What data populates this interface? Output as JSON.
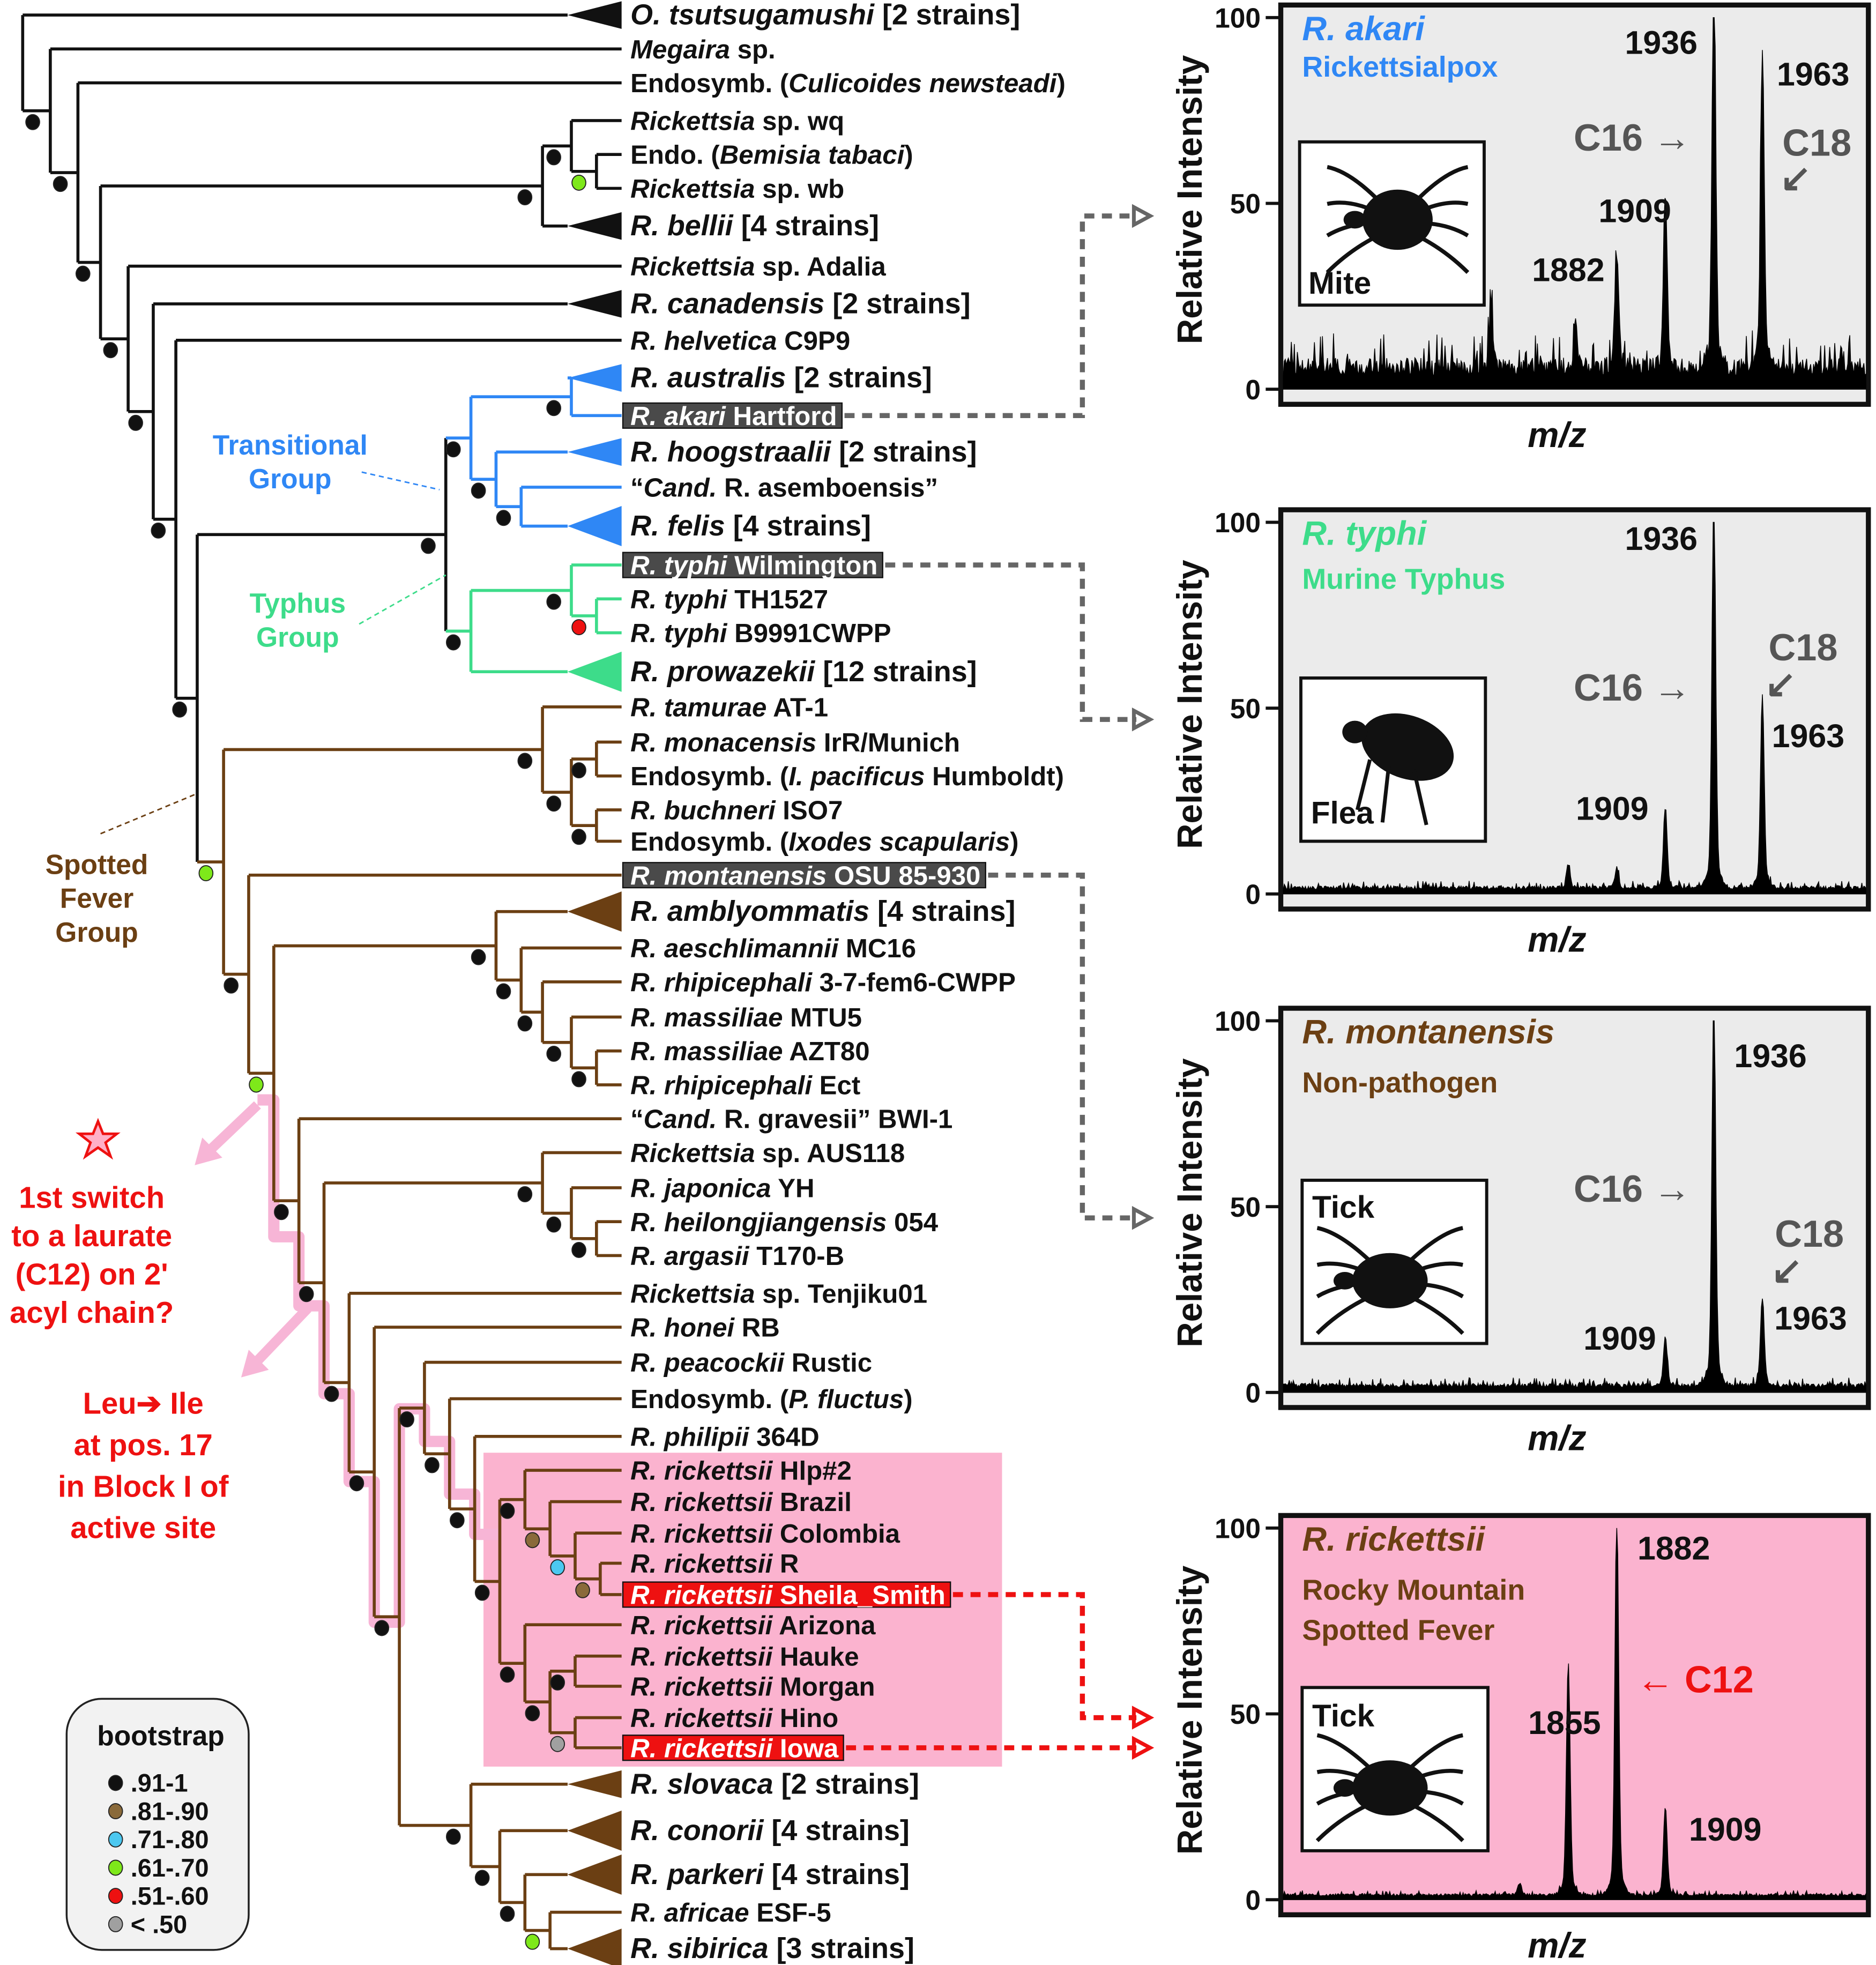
{
  "colors": {
    "basal": "#111111",
    "transitional": "#2f87f5",
    "typhus": "#3ddc8a",
    "spotted": "#6b3f13",
    "highlight_gray": "#4a4a4a",
    "highlight_red": "#ee1111",
    "pink_box": "#fbb3cf",
    "annotation_red": "#ee1111",
    "arrow_pink": "#f7b5d6",
    "panel_bg": "#ebebeb"
  },
  "tree": {
    "leaves": [
      {
        "p": [
          [
            "O. tsutsugamushi",
            1
          ],
          [
            "  [2 strains]",
            0
          ]
        ],
        "g": "k",
        "c": 1
      },
      {
        "p": [
          [
            "Megaira",
            1
          ],
          [
            " sp.",
            0
          ]
        ],
        "g": "k"
      },
      {
        "p": [
          [
            "Endosymb. (",
            0
          ],
          [
            "Culicoides newsteadi",
            1
          ],
          [
            ")",
            0
          ]
        ],
        "g": "k"
      },
      {
        "p": [
          [
            "Rickettsia",
            1
          ],
          [
            " sp. wq",
            0
          ]
        ],
        "g": "k"
      },
      {
        "p": [
          [
            "Endo. (",
            0
          ],
          [
            "Bemisia tabaci",
            1
          ],
          [
            ")",
            0
          ]
        ],
        "g": "k"
      },
      {
        "p": [
          [
            "Rickettsia",
            1
          ],
          [
            " sp. wb",
            0
          ]
        ],
        "g": "k"
      },
      {
        "p": [
          [
            "R. bellii",
            1
          ],
          [
            "  [4 strains]",
            0
          ]
        ],
        "g": "k",
        "c": 1
      },
      {
        "p": [
          [
            "Rickettsia",
            1
          ],
          [
            " sp. Adalia",
            0
          ]
        ],
        "g": "k"
      },
      {
        "p": [
          [
            "R. canadensis",
            1
          ],
          [
            "  [2 strains]",
            0
          ]
        ],
        "g": "k",
        "c": 1
      },
      {
        "p": [
          [
            "R. helvetica",
            1
          ],
          [
            "  C9P9",
            0
          ]
        ],
        "g": "k"
      },
      {
        "p": [
          [
            "R. australis",
            1
          ],
          [
            "  [2 strains]",
            0
          ]
        ],
        "g": "t",
        "c": 1
      },
      {
        "p": [
          [
            "R. akari",
            1
          ],
          [
            "  Hartford",
            0
          ]
        ],
        "g": "t",
        "hl": "gray"
      },
      {
        "p": [
          [
            "R. hoogstraalii",
            1
          ],
          [
            "  [2 strains]",
            0
          ]
        ],
        "g": "t",
        "c": 1
      },
      {
        "p": [
          [
            "“",
            0
          ],
          [
            "Cand.",
            1
          ],
          [
            " R. asemboensis”",
            0
          ]
        ],
        "g": "t"
      },
      {
        "p": [
          [
            "R. felis",
            1
          ],
          [
            "  [4 strains]",
            0
          ]
        ],
        "g": "t",
        "c": 2
      },
      {
        "p": [
          [
            "R. typhi",
            1
          ],
          [
            "  Wilmington",
            0
          ]
        ],
        "g": "y",
        "hl": "gray"
      },
      {
        "p": [
          [
            "R. typhi",
            1
          ],
          [
            "  TH1527",
            0
          ]
        ],
        "g": "y"
      },
      {
        "p": [
          [
            "R. typhi",
            1
          ],
          [
            "  B9991CWPP",
            0
          ]
        ],
        "g": "y"
      },
      {
        "p": [
          [
            "R. prowazekii",
            1
          ],
          [
            "  [12 strains]",
            0
          ]
        ],
        "g": "y",
        "c": 2
      },
      {
        "p": [
          [
            "R. tamurae",
            1
          ],
          [
            "  AT-1",
            0
          ]
        ],
        "g": "s"
      },
      {
        "p": [
          [
            "R. monacensis",
            1
          ],
          [
            "  IrR/Munich",
            0
          ]
        ],
        "g": "s"
      },
      {
        "p": [
          [
            "Endosymb. (",
            0
          ],
          [
            "I. pacificus",
            1
          ],
          [
            " Humboldt)",
            0
          ]
        ],
        "g": "s"
      },
      {
        "p": [
          [
            "R. buchneri",
            1
          ],
          [
            "  ISO7",
            0
          ]
        ],
        "g": "s"
      },
      {
        "p": [
          [
            "Endosymb. (",
            0
          ],
          [
            "Ixodes scapularis",
            1
          ],
          [
            ")",
            0
          ]
        ],
        "g": "s"
      },
      {
        "p": [
          [
            "R. montanensis",
            1
          ],
          [
            "  OSU 85-930",
            0
          ]
        ],
        "g": "s",
        "hl": "gray"
      },
      {
        "p": [
          [
            "R. amblyommatis",
            1
          ],
          [
            "  [4 strains]",
            0
          ]
        ],
        "g": "s",
        "c": 2
      },
      {
        "p": [
          [
            "R. aeschlimannii",
            1
          ],
          [
            "  MC16",
            0
          ]
        ],
        "g": "s"
      },
      {
        "p": [
          [
            "R. rhipicephali",
            1
          ],
          [
            "  3-7-fem6-CWPP",
            0
          ]
        ],
        "g": "s"
      },
      {
        "p": [
          [
            "R. massiliae",
            1
          ],
          [
            "  MTU5",
            0
          ]
        ],
        "g": "s"
      },
      {
        "p": [
          [
            "R. massiliae",
            1
          ],
          [
            "  AZT80",
            0
          ]
        ],
        "g": "s"
      },
      {
        "p": [
          [
            "R. rhipicephali",
            1
          ],
          [
            "  Ect",
            0
          ]
        ],
        "g": "s"
      },
      {
        "p": [
          [
            "“",
            0
          ],
          [
            "Cand.",
            1
          ],
          [
            " R. gravesii”  BWI-1",
            0
          ]
        ],
        "g": "s"
      },
      {
        "p": [
          [
            "Rickettsia",
            1
          ],
          [
            " sp. AUS118",
            0
          ]
        ],
        "g": "s"
      },
      {
        "p": [
          [
            "R. japonica",
            1
          ],
          [
            "  YH",
            0
          ]
        ],
        "g": "s"
      },
      {
        "p": [
          [
            "R. heilongjiangensis",
            1
          ],
          [
            "  054",
            0
          ]
        ],
        "g": "s"
      },
      {
        "p": [
          [
            "R. argasii",
            1
          ],
          [
            "  T170-B",
            0
          ]
        ],
        "g": "s"
      },
      {
        "p": [
          [
            "Rickettsia",
            1
          ],
          [
            " sp. Tenjiku01",
            0
          ]
        ],
        "g": "s"
      },
      {
        "p": [
          [
            "R. honei",
            1
          ],
          [
            "  RB",
            0
          ]
        ],
        "g": "s"
      },
      {
        "p": [
          [
            "R. peacockii",
            1
          ],
          [
            "  Rustic",
            0
          ]
        ],
        "g": "s"
      },
      {
        "p": [
          [
            "Endosymb. (",
            0
          ],
          [
            "P. fluctus",
            1
          ],
          [
            ")",
            0
          ]
        ],
        "g": "s"
      },
      {
        "p": [
          [
            "R. philipii",
            1
          ],
          [
            "  364D",
            0
          ]
        ],
        "g": "s"
      },
      {
        "p": [
          [
            "R. rickettsii",
            1
          ],
          [
            "  Hlp#2",
            0
          ]
        ],
        "g": "s"
      },
      {
        "p": [
          [
            "R. rickettsii",
            1
          ],
          [
            "  Brazil",
            0
          ]
        ],
        "g": "s"
      },
      {
        "p": [
          [
            "R. rickettsii",
            1
          ],
          [
            "  Colombia",
            0
          ]
        ],
        "g": "s"
      },
      {
        "p": [
          [
            "R. rickettsii",
            1
          ],
          [
            "  R",
            0
          ]
        ],
        "g": "s"
      },
      {
        "p": [
          [
            "R. rickettsii",
            1
          ],
          [
            "  Sheila_Smith",
            0
          ]
        ],
        "g": "s",
        "hl": "red"
      },
      {
        "p": [
          [
            "R. rickettsii",
            1
          ],
          [
            "  Arizona",
            0
          ]
        ],
        "g": "s"
      },
      {
        "p": [
          [
            "R. rickettsii",
            1
          ],
          [
            "  Hauke",
            0
          ]
        ],
        "g": "s"
      },
      {
        "p": [
          [
            "R. rickettsii",
            1
          ],
          [
            "  Morgan",
            0
          ]
        ],
        "g": "s"
      },
      {
        "p": [
          [
            "R. rickettsii",
            1
          ],
          [
            "  Hino",
            0
          ]
        ],
        "g": "s"
      },
      {
        "p": [
          [
            "R. rickettsii",
            1
          ],
          [
            "  Iowa",
            0
          ]
        ],
        "g": "s",
        "hl": "red"
      },
      {
        "p": [
          [
            "R. slovaca",
            1
          ],
          [
            "  [2 strains]",
            0
          ]
        ],
        "g": "s",
        "c": 1
      },
      {
        "p": [
          [
            "R. conorii",
            1
          ],
          [
            "  [4 strains]",
            0
          ]
        ],
        "g": "s",
        "c": 2
      },
      {
        "p": [
          [
            "R. parkeri",
            1
          ],
          [
            "  [4 strains]",
            0
          ]
        ],
        "g": "s",
        "c": 2
      },
      {
        "p": [
          [
            "R. africae",
            1
          ],
          [
            "  ESF-5",
            0
          ]
        ],
        "g": "s"
      },
      {
        "p": [
          [
            "R. sibirica",
            1
          ],
          [
            "  [3 strains]",
            0
          ]
        ],
        "g": "s",
        "c": 2
      }
    ]
  },
  "groups": {
    "transitional": [
      "Transitional",
      "Group"
    ],
    "typhus": [
      "Typhus",
      "Group"
    ],
    "spotted": [
      "Spotted",
      "Fever",
      "Group"
    ]
  },
  "annotations": {
    "switch": [
      "1st switch",
      "to a laurate",
      "(C12) on 2'",
      "acyl chain?"
    ],
    "mutation": [
      "Leu➔ Ile",
      "at pos. 17",
      "in Block I of",
      "active site"
    ]
  },
  "legend": {
    "title": "bootstrap",
    "items": [
      {
        "key": "k",
        "label": ".91-1",
        "color": "#111111"
      },
      {
        "key": "b",
        "label": ".81-.90",
        "color": "#8a6a3a"
      },
      {
        "key": "c",
        "label": ".71-.80",
        "color": "#4cc8f0"
      },
      {
        "key": "g",
        "label": ".61-.70",
        "color": "#7ee81a"
      },
      {
        "key": "r",
        "label": ".51-.60",
        "color": "#ee1111"
      },
      {
        "key": "x",
        "label": "< .50",
        "color": "#a0a0a0"
      }
    ]
  },
  "panels": [
    {
      "title": "R. akari",
      "title_color": "#2f87f5",
      "subtitle": [
        "Rickettsialpox"
      ],
      "host": "Mite",
      "bg": "#ebebeb",
      "ylabel": "Relative Intensity",
      "xlabel": "m/z",
      "yticks": [
        "100",
        "50",
        "0"
      ],
      "xlim": [
        1695,
        2022
      ],
      "noise": 6,
      "peaks": [
        [
          1812,
          14
        ],
        [
          1859,
          12
        ],
        [
          1882,
          28
        ],
        [
          1909,
          42
        ],
        [
          1936,
          97
        ],
        [
          1963,
          80
        ]
      ],
      "peak_labels": [
        "1936",
        "1963",
        "1909",
        "1882"
      ],
      "marks": [
        {
          "text": "C16 →",
          "color": "#555555"
        },
        {
          "text": "C18",
          "color": "#555555"
        },
        {
          "text": "↙",
          "color": "#555555"
        }
      ]
    },
    {
      "title": "R. typhi",
      "title_color": "#3ddc8a",
      "subtitle": [
        "Murine Typhus"
      ],
      "host": "Flea",
      "bg": "#ebebeb",
      "ylabel": "Relative Intensity",
      "xlabel": "m/z",
      "yticks": [
        "100",
        "50",
        "0"
      ],
      "xlim": [
        1695,
        2022
      ],
      "noise": 1.2,
      "peaks": [
        [
          1855,
          6
        ],
        [
          1882,
          5
        ],
        [
          1909,
          20
        ],
        [
          1936,
          98
        ],
        [
          1963,
          48
        ]
      ],
      "peak_labels": [
        "1936",
        "1909",
        "1963"
      ],
      "marks": [
        {
          "text": "C16 →",
          "color": "#555555"
        },
        {
          "text": "C18",
          "color": "#555555"
        },
        {
          "text": "↙",
          "color": "#555555"
        }
      ]
    },
    {
      "title": "R. montanensis",
      "title_color": "#6b3f13",
      "subtitle": [
        "Non-pathogen"
      ],
      "host": "Tick",
      "bg": "#ebebeb",
      "ylabel": "Relative Intensity",
      "xlabel": "m/z",
      "yticks": [
        "100",
        "50",
        "0"
      ],
      "xlim": [
        1695,
        2022
      ],
      "noise": 1.4,
      "peaks": [
        [
          1909,
          12
        ],
        [
          1936,
          98
        ],
        [
          1963,
          22
        ]
      ],
      "peak_labels": [
        "1936",
        "1909",
        "1963"
      ],
      "marks": [
        {
          "text": "C16 →",
          "color": "#555555"
        },
        {
          "text": "C18",
          "color": "#555555"
        },
        {
          "text": "↙",
          "color": "#555555"
        }
      ]
    },
    {
      "title": "R. rickettsii",
      "title_color": "#6b3f13",
      "subtitle": [
        "Rocky Mountain",
        "Spotted Fever"
      ],
      "host": "Tick",
      "bg": "#fbb3cf",
      "ylabel": "Relative Intensity",
      "xlabel": "m/z",
      "yticks": [
        "100",
        "50",
        "0"
      ],
      "xlim": [
        1695,
        2022
      ],
      "noise": 0.8,
      "peaks": [
        [
          1828,
          3
        ],
        [
          1855,
          58
        ],
        [
          1882,
          97
        ],
        [
          1909,
          22
        ]
      ],
      "peak_labels": [
        "1882",
        "1855",
        "1909"
      ],
      "marks": [
        {
          "text": "← C12",
          "color": "#ee1111"
        }
      ]
    }
  ]
}
